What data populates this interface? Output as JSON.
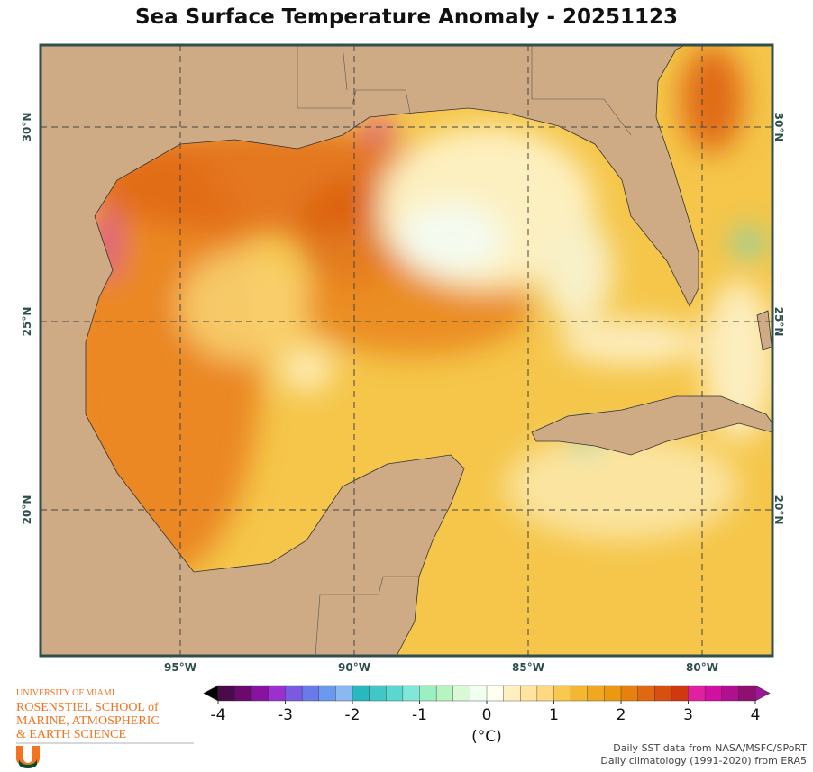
{
  "title": "Sea Surface Temperature Anomaly - 20251123",
  "map": {
    "longitude_labels": [
      "95°W",
      "90°W",
      "85°W",
      "80°W"
    ],
    "latitude_labels": [
      "30°N",
      "25°N",
      "20°N"
    ]
  },
  "colorbar": {
    "limits": [
      -4,
      4
    ],
    "ticks": [
      -4,
      -3,
      -2,
      -1,
      0,
      1,
      2,
      3,
      4
    ],
    "label": "(°C)",
    "under_color": "#000000",
    "over_color": "#a0149a",
    "colors": [
      "#4b0a4b",
      "#6a0a6e",
      "#8a12a0",
      "#9b30d0",
      "#7a5ae0",
      "#6a7ae8",
      "#6a9aee",
      "#8ab8f0",
      "#2ab8c0",
      "#40c8c8",
      "#5ad8d0",
      "#80e8d8",
      "#9af0c0",
      "#b8f4c0",
      "#d8f8d8",
      "#f0fff0",
      "#fffff0",
      "#fff0c0",
      "#ffe4a0",
      "#ffd880",
      "#f8c850",
      "#f4b830",
      "#f0a820",
      "#ec9810",
      "#e88010",
      "#e06810",
      "#d85010",
      "#d03810",
      "#e020a0",
      "#d010a0",
      "#b01090",
      "#901070"
    ]
  },
  "logo": {
    "university": "UNIVERSITY OF MIAMI",
    "school": [
      "ROSENSTIEL SCHOOL of",
      "MARINE, ATMOSPHERIC",
      "& EARTH SCIENCE"
    ]
  },
  "credits": [
    "Daily SST data from NASA/MSFC/SPoRT",
    "Daily climatology (1991-2020) from ERA5"
  ]
}
